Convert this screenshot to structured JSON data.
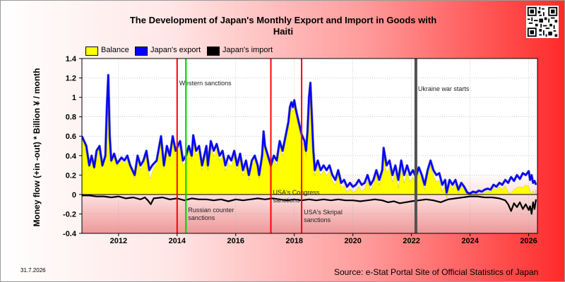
{
  "page": {
    "title_line1": "The Development of Japan's Monthly Export and Import in Goods with",
    "title_line2": "Haiti",
    "date_stamp": "31.7.2026",
    "source": "Source: e-Stat Portal Site of Official Statistics of Japan"
  },
  "colors": {
    "balance": "#ffff00",
    "export": "#0000ff",
    "import": "#000000",
    "event_red": "#ff0000",
    "event_green": "#00dd00",
    "event_gray": "#505050"
  },
  "chart_data": {
    "type": "line",
    "title": "The Development of Japan's Monthly Export and Import in Goods with Haiti",
    "xlabel": "",
    "ylabel": "Money flow (+in -out) * Billion ¥ / month",
    "xlim": [
      2010.75,
      2026.3
    ],
    "ylim": [
      -0.4,
      1.4
    ],
    "x_ticks": [
      2012,
      2014,
      2016,
      2018,
      2020,
      2022,
      2024,
      2026
    ],
    "y_ticks": [
      -0.4,
      -0.2,
      0,
      0.2,
      0.4,
      0.6,
      0.8,
      1,
      1.2,
      1.4
    ],
    "y_tick_labels": [
      "-0.4",
      "-0.2",
      "0",
      "0.2",
      "0.4",
      "0.6",
      "0.8",
      "1",
      "1.2",
      "1.4"
    ],
    "grid": true,
    "legend_position": "top-left",
    "series": [
      {
        "name": "Japan's export",
        "points": [
          [
            2010.75,
            0.6
          ],
          [
            2010.9,
            0.5
          ],
          [
            2011.0,
            0.3
          ],
          [
            2011.08,
            0.4
          ],
          [
            2011.17,
            0.28
          ],
          [
            2011.25,
            0.45
          ],
          [
            2011.35,
            0.5
          ],
          [
            2011.45,
            0.3
          ],
          [
            2011.55,
            0.4
          ],
          [
            2011.6,
            0.9
          ],
          [
            2011.65,
            1.23
          ],
          [
            2011.7,
            0.6
          ],
          [
            2011.75,
            0.35
          ],
          [
            2011.85,
            0.42
          ],
          [
            2011.95,
            0.32
          ],
          [
            2012.1,
            0.38
          ],
          [
            2012.2,
            0.35
          ],
          [
            2012.3,
            0.4
          ],
          [
            2012.4,
            0.3
          ],
          [
            2012.55,
            0.2
          ],
          [
            2012.65,
            0.4
          ],
          [
            2012.75,
            0.3
          ],
          [
            2012.85,
            0.35
          ],
          [
            2012.95,
            0.45
          ],
          [
            2013.05,
            0.25
          ],
          [
            2013.15,
            0.3
          ],
          [
            2013.3,
            0.35
          ],
          [
            2013.45,
            0.6
          ],
          [
            2013.55,
            0.3
          ],
          [
            2013.65,
            0.5
          ],
          [
            2013.75,
            0.4
          ],
          [
            2013.85,
            0.6
          ],
          [
            2013.95,
            0.45
          ],
          [
            2014.1,
            0.55
          ],
          [
            2014.2,
            0.35
          ],
          [
            2014.3,
            0.4
          ],
          [
            2014.4,
            0.5
          ],
          [
            2014.5,
            0.4
          ],
          [
            2014.55,
            0.61
          ],
          [
            2014.65,
            0.45
          ],
          [
            2014.75,
            0.5
          ],
          [
            2014.85,
            0.3
          ],
          [
            2015.0,
            0.5
          ],
          [
            2015.05,
            0.3
          ],
          [
            2015.15,
            0.55
          ],
          [
            2015.25,
            0.45
          ],
          [
            2015.35,
            0.52
          ],
          [
            2015.45,
            0.4
          ],
          [
            2015.55,
            0.45
          ],
          [
            2015.65,
            0.3
          ],
          [
            2015.75,
            0.4
          ],
          [
            2015.85,
            0.35
          ],
          [
            2015.95,
            0.45
          ],
          [
            2016.05,
            0.3
          ],
          [
            2016.15,
            0.42
          ],
          [
            2016.25,
            0.25
          ],
          [
            2016.35,
            0.35
          ],
          [
            2016.45,
            0.2
          ],
          [
            2016.55,
            0.35
          ],
          [
            2016.65,
            0.4
          ],
          [
            2016.75,
            0.3
          ],
          [
            2016.8,
            0.2
          ],
          [
            2016.9,
            0.4
          ],
          [
            2016.95,
            0.65
          ],
          [
            2017.0,
            0.5
          ],
          [
            2017.1,
            0.4
          ],
          [
            2017.2,
            0.3
          ],
          [
            2017.3,
            0.4
          ],
          [
            2017.4,
            0.35
          ],
          [
            2017.5,
            0.55
          ],
          [
            2017.6,
            0.45
          ],
          [
            2017.7,
            0.6
          ],
          [
            2017.8,
            0.75
          ],
          [
            2017.85,
            0.9
          ],
          [
            2017.9,
            0.95
          ],
          [
            2017.95,
            0.9
          ],
          [
            2018.0,
            0.97
          ],
          [
            2018.05,
            0.88
          ],
          [
            2018.15,
            0.75
          ],
          [
            2018.25,
            0.62
          ],
          [
            2018.35,
            0.55
          ],
          [
            2018.4,
            0.45
          ],
          [
            2018.45,
            0.65
          ],
          [
            2018.5,
            1.0
          ],
          [
            2018.55,
            1.15
          ],
          [
            2018.6,
            0.8
          ],
          [
            2018.65,
            0.45
          ],
          [
            2018.7,
            0.25
          ],
          [
            2018.8,
            0.35
          ],
          [
            2018.9,
            0.25
          ],
          [
            2019.0,
            0.3
          ],
          [
            2019.1,
            0.25
          ],
          [
            2019.2,
            0.3
          ],
          [
            2019.3,
            0.2
          ],
          [
            2019.4,
            0.15
          ],
          [
            2019.5,
            0.25
          ],
          [
            2019.6,
            0.12
          ],
          [
            2019.7,
            0.15
          ],
          [
            2019.8,
            0.08
          ],
          [
            2019.9,
            0.12
          ],
          [
            2020.0,
            0.08
          ],
          [
            2020.1,
            0.1
          ],
          [
            2020.2,
            0.15
          ],
          [
            2020.3,
            0.1
          ],
          [
            2020.4,
            0.12
          ],
          [
            2020.5,
            0.2
          ],
          [
            2020.6,
            0.1
          ],
          [
            2020.7,
            0.15
          ],
          [
            2020.8,
            0.25
          ],
          [
            2020.9,
            0.15
          ],
          [
            2021.0,
            0.25
          ],
          [
            2021.05,
            0.48
          ],
          [
            2021.15,
            0.3
          ],
          [
            2021.25,
            0.35
          ],
          [
            2021.35,
            0.2
          ],
          [
            2021.45,
            0.3
          ],
          [
            2021.55,
            0.15
          ],
          [
            2021.65,
            0.35
          ],
          [
            2021.75,
            0.2
          ],
          [
            2021.85,
            0.3
          ],
          [
            2021.95,
            0.2
          ],
          [
            2022.05,
            0.25
          ],
          [
            2022.15,
            0.18
          ],
          [
            2022.25,
            0.28
          ],
          [
            2022.35,
            0.2
          ],
          [
            2022.45,
            0.1
          ],
          [
            2022.55,
            0.25
          ],
          [
            2022.65,
            0.35
          ],
          [
            2022.75,
            0.25
          ],
          [
            2022.85,
            0.2
          ],
          [
            2022.95,
            0.22
          ],
          [
            2023.05,
            0.1
          ],
          [
            2023.15,
            0.15
          ],
          [
            2023.2,
            0.02
          ],
          [
            2023.3,
            0.15
          ],
          [
            2023.4,
            0.1
          ],
          [
            2023.5,
            0.15
          ],
          [
            2023.6,
            0.05
          ],
          [
            2023.7,
            0.12
          ],
          [
            2023.8,
            0.08
          ],
          [
            2023.9,
            0.02
          ],
          [
            2024.0,
            0.01
          ],
          [
            2024.1,
            0.03
          ],
          [
            2024.2,
            0.02
          ],
          [
            2024.3,
            0.04
          ],
          [
            2024.4,
            0.03
          ],
          [
            2024.5,
            0.05
          ],
          [
            2024.6,
            0.06
          ],
          [
            2024.7,
            0.05
          ],
          [
            2024.8,
            0.1
          ],
          [
            2024.9,
            0.08
          ],
          [
            2025.0,
            0.12
          ],
          [
            2025.1,
            0.1
          ],
          [
            2025.2,
            0.15
          ],
          [
            2025.3,
            0.12
          ],
          [
            2025.4,
            0.18
          ],
          [
            2025.5,
            0.14
          ],
          [
            2025.6,
            0.2
          ],
          [
            2025.7,
            0.16
          ],
          [
            2025.8,
            0.22
          ],
          [
            2025.9,
            0.2
          ],
          [
            2026.0,
            0.24
          ],
          [
            2026.05,
            0.15
          ],
          [
            2026.1,
            0.2
          ],
          [
            2026.15,
            0.12
          ],
          [
            2026.2,
            0.14
          ],
          [
            2026.25,
            0.1
          ]
        ]
      },
      {
        "name": "Japan's import",
        "points": [
          [
            2010.75,
            -0.01
          ],
          [
            2011.0,
            -0.01
          ],
          [
            2011.25,
            -0.02
          ],
          [
            2011.5,
            -0.02
          ],
          [
            2011.75,
            -0.03
          ],
          [
            2012.0,
            -0.02
          ],
          [
            2012.25,
            -0.04
          ],
          [
            2012.5,
            -0.03
          ],
          [
            2012.75,
            -0.05
          ],
          [
            2012.9,
            -0.03
          ],
          [
            2013.0,
            -0.06
          ],
          [
            2013.1,
            -0.1
          ],
          [
            2013.2,
            -0.04
          ],
          [
            2013.5,
            -0.03
          ],
          [
            2013.75,
            -0.05
          ],
          [
            2014.0,
            -0.04
          ],
          [
            2014.25,
            -0.06
          ],
          [
            2014.5,
            -0.04
          ],
          [
            2014.75,
            -0.05
          ],
          [
            2015.0,
            -0.05
          ],
          [
            2015.25,
            -0.06
          ],
          [
            2015.5,
            -0.05
          ],
          [
            2015.75,
            -0.07
          ],
          [
            2016.0,
            -0.05
          ],
          [
            2016.25,
            -0.06
          ],
          [
            2016.5,
            -0.05
          ],
          [
            2016.75,
            -0.04
          ],
          [
            2017.0,
            -0.05
          ],
          [
            2017.25,
            -0.04
          ],
          [
            2017.5,
            -0.05
          ],
          [
            2017.75,
            -0.06
          ],
          [
            2018.0,
            -0.05
          ],
          [
            2018.25,
            -0.06
          ],
          [
            2018.5,
            -0.05
          ],
          [
            2018.75,
            -0.06
          ],
          [
            2019.0,
            -0.05
          ],
          [
            2019.25,
            -0.06
          ],
          [
            2019.5,
            -0.05
          ],
          [
            2019.75,
            -0.06
          ],
          [
            2020.0,
            -0.06
          ],
          [
            2020.25,
            -0.07
          ],
          [
            2020.5,
            -0.06
          ],
          [
            2020.75,
            -0.05
          ],
          [
            2021.0,
            -0.06
          ],
          [
            2021.2,
            -0.08
          ],
          [
            2021.4,
            -0.07
          ],
          [
            2021.6,
            -0.09
          ],
          [
            2021.8,
            -0.08
          ],
          [
            2022.0,
            -0.07
          ],
          [
            2022.25,
            -0.06
          ],
          [
            2022.5,
            -0.05
          ],
          [
            2022.75,
            -0.06
          ],
          [
            2023.0,
            -0.08
          ],
          [
            2023.25,
            -0.05
          ],
          [
            2023.5,
            -0.04
          ],
          [
            2023.75,
            -0.03
          ],
          [
            2024.0,
            -0.02
          ],
          [
            2024.25,
            -0.02
          ],
          [
            2024.5,
            -0.03
          ],
          [
            2024.75,
            -0.03
          ],
          [
            2025.0,
            -0.04
          ],
          [
            2025.2,
            -0.06
          ],
          [
            2025.3,
            -0.1
          ],
          [
            2025.4,
            -0.17
          ],
          [
            2025.5,
            -0.09
          ],
          [
            2025.6,
            -0.13
          ],
          [
            2025.7,
            -0.08
          ],
          [
            2025.8,
            -0.15
          ],
          [
            2025.9,
            -0.1
          ],
          [
            2026.0,
            -0.16
          ],
          [
            2026.05,
            -0.12
          ],
          [
            2026.1,
            -0.2
          ],
          [
            2026.15,
            -0.08
          ],
          [
            2026.2,
            -0.15
          ],
          [
            2026.25,
            -0.05
          ]
        ]
      },
      {
        "name": "Balance",
        "note_rule": "export + import",
        "points": []
      }
    ],
    "annotations": [
      {
        "text": "Western sanctions",
        "x": 2014.0,
        "color": "#ff0000"
      },
      {
        "text": "",
        "x": 2014.3,
        "color": "#00dd00"
      },
      {
        "text": "Russian counter",
        "text2": "sanctions",
        "x": 2014.3,
        "color": "#00dd00"
      },
      {
        "text": "USA's Congress",
        "text2": "sanctions",
        "x": 2017.2,
        "color": "#ff0000"
      },
      {
        "text": "USA's Skripal",
        "text2": "sanctions",
        "x": 2018.25,
        "color": "#ff0000"
      },
      {
        "text": "Ukraine war starts",
        "x": 2022.15,
        "color": "#505050"
      }
    ]
  }
}
